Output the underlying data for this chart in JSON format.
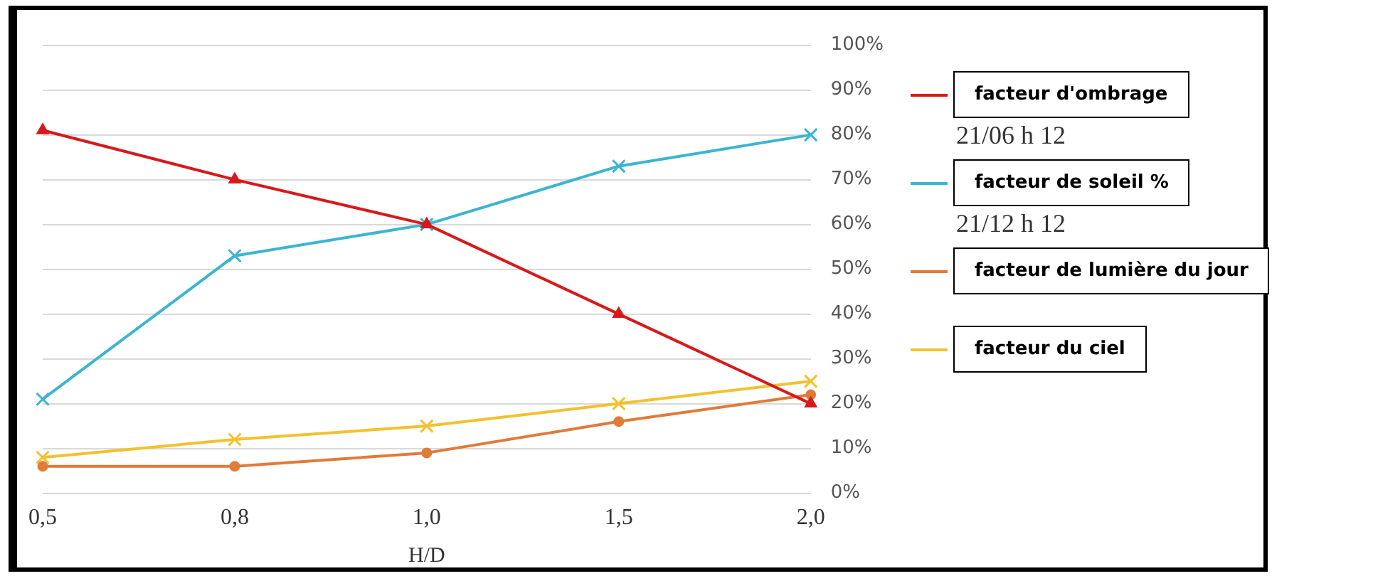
{
  "chart_data": {
    "type": "line",
    "xlabel": "H/D",
    "categories": [
      "0,5",
      "0,8",
      "1,0",
      "1,5",
      "2,0"
    ],
    "series": [
      {
        "name": "facteur d'ombrage",
        "color": "#d7191c",
        "marker": "triangle",
        "values": [
          81,
          70,
          60,
          40,
          20
        ]
      },
      {
        "name": "facteur de soleil  %",
        "color": "#3cb4d2",
        "marker": "cross",
        "values": [
          21,
          53,
          60,
          73,
          80
        ]
      },
      {
        "name": "facteur de lumière du jour",
        "color": "#e07b39",
        "marker": "circle",
        "values": [
          6,
          6,
          9,
          16,
          22
        ]
      },
      {
        "name": "facteur du ciel",
        "color": "#f2c12e",
        "marker": "cross",
        "values": [
          8,
          12,
          15,
          20,
          25
        ]
      }
    ],
    "ylim": [
      0,
      100
    ],
    "yticks": [
      {
        "value": 0,
        "label": "0%"
      },
      {
        "value": 10,
        "label": "10%"
      },
      {
        "value": 20,
        "label": "20%"
      },
      {
        "value": 30,
        "label": "30%"
      },
      {
        "value": 40,
        "label": "40%"
      },
      {
        "value": 50,
        "label": "50%"
      },
      {
        "value": 60,
        "label": "60%"
      },
      {
        "value": 70,
        "label": "70%"
      },
      {
        "value": 80,
        "label": "80%"
      },
      {
        "value": 90,
        "label": "90%"
      },
      {
        "value": 100,
        "label": "100%"
      }
    ],
    "grid": "y",
    "legend": "right",
    "line_style": "solid",
    "annotations": [
      "21/06  h 12",
      "21/12 h 12"
    ]
  }
}
